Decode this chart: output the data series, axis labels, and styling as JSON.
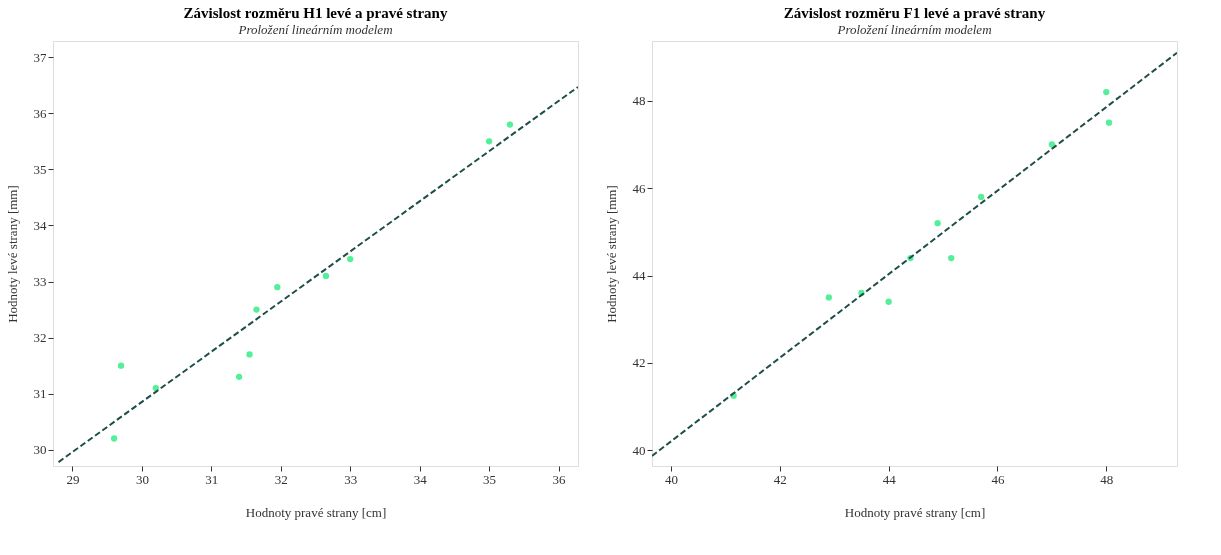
{
  "chart_data": [
    {
      "type": "scatter",
      "title": "Závislost rozměru H1 levé a pravé strany",
      "subtitle": "Proložení lineárním modelem",
      "xlabel": "Hodnoty pravé strany [cm]",
      "ylabel": "Hodnoty levé strany [mm]",
      "xlim": [
        28.72,
        36.28
      ],
      "ylim": [
        29.71,
        37.29
      ],
      "xticks": [
        29,
        30,
        31,
        32,
        33,
        34,
        35,
        36
      ],
      "yticks": [
        30,
        31,
        32,
        33,
        34,
        35,
        36,
        37
      ],
      "grid": false,
      "series": [
        {
          "color": "#55ee99",
          "marker": "circle",
          "x": [
            29.6,
            29.7,
            30.2,
            31.4,
            31.55,
            31.65,
            31.95,
            32.65,
            33.0,
            35.0,
            35.3
          ],
          "values": [
            30.2,
            31.5,
            31.1,
            31.3,
            31.7,
            32.5,
            32.9,
            33.1,
            33.4,
            35.5,
            35.8
          ]
        },
        {
          "type": "line",
          "color": "#1f4e4a",
          "line_style": "dashed",
          "x": [
            28.8,
            36.28
          ],
          "values": [
            29.78,
            36.47
          ]
        }
      ]
    },
    {
      "type": "scatter",
      "title": "Závislost rozměru F1 levé a pravé strany",
      "subtitle": "Proložení lineárním modelem",
      "xlabel": "Hodnoty pravé strany [cm]",
      "ylabel": "Hodnoty levé strany [mm]",
      "xlim": [
        39.65,
        49.3
      ],
      "ylim": [
        39.64,
        49.37
      ],
      "xticks": [
        40,
        42,
        44,
        46,
        48
      ],
      "yticks": [
        40,
        42,
        44,
        46,
        48
      ],
      "grid": false,
      "series": [
        {
          "color": "#55ee99",
          "marker": "circle",
          "x": [
            41.15,
            42.9,
            43.5,
            44.0,
            44.4,
            44.9,
            45.15,
            45.7,
            47.0,
            48.0,
            48.05
          ],
          "values": [
            41.25,
            43.5,
            43.6,
            43.4,
            44.4,
            45.2,
            44.4,
            45.8,
            47.0,
            48.2,
            47.5
          ]
        },
        {
          "type": "line",
          "color": "#1f4e4a",
          "line_style": "dashed",
          "x": [
            39.65,
            49.3
          ],
          "values": [
            39.87,
            49.1
          ]
        }
      ]
    }
  ]
}
